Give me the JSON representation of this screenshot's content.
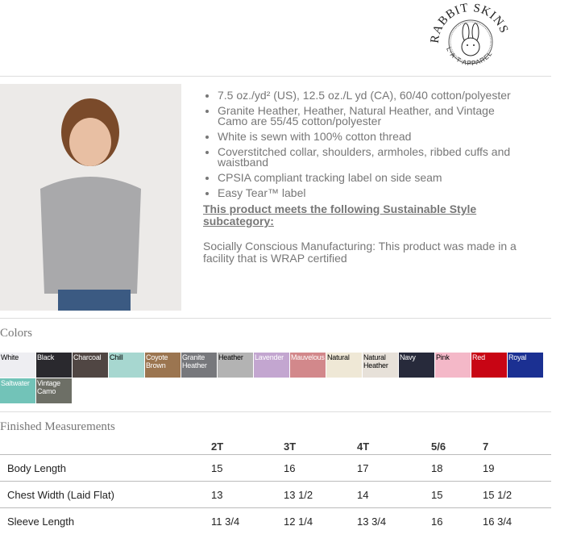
{
  "logo": {
    "text_top": "RABBIT SKINS",
    "text_bottom": "L·A·T APPAREL"
  },
  "features": [
    "7.5 oz./yd² (US), 12.5 oz./L yd (CA), 60/40 cotton/polyester",
    "Granite Heather, Heather, Natural Heather, and Vintage Camo are 55/45 cotton/polyester",
    "White is sewn with 100% cotton thread",
    "Coverstitched collar, shoulders, armholes, ribbed cuffs and waistband",
    "CPSIA compliant tracking label on side seam",
    "Easy Tear™ label"
  ],
  "sustainable_heading": "This product meets the following Sustainable Style subcategory:",
  "sustainable_text": "Socially Conscious Manufacturing: This product was made in a facility that is WRAP certified",
  "colors_title": "Colors",
  "colors": [
    {
      "name": "White",
      "hex": "#eeeef2",
      "dark": true
    },
    {
      "name": "Black",
      "hex": "#2a292e"
    },
    {
      "name": "Charcoal",
      "hex": "#504643"
    },
    {
      "name": "Chill",
      "hex": "#a7d7d0",
      "dark": true
    },
    {
      "name": "Coyote Brown",
      "hex": "#9b7550"
    },
    {
      "name": "Granite Heather",
      "hex": "#77787c"
    },
    {
      "name": "Heather",
      "hex": "#b3b3b3",
      "dark": true
    },
    {
      "name": "Lavender",
      "hex": "#c3a6d0"
    },
    {
      "name": "Mauvelous",
      "hex": "#d2888b"
    },
    {
      "name": "Natural",
      "hex": "#efe8d6",
      "dark": true
    },
    {
      "name": "Natural Heather",
      "hex": "#e7e1d9",
      "dark": true
    },
    {
      "name": "Navy",
      "hex": "#272a3b"
    },
    {
      "name": "Pink",
      "hex": "#f4b8c8",
      "dark": true
    },
    {
      "name": "Red",
      "hex": "#c80514"
    },
    {
      "name": "Royal",
      "hex": "#1b3092"
    },
    {
      "name": "Saltwater",
      "hex": "#72c3b8"
    },
    {
      "name": "Vintage Camo",
      "hex": "#6d6f66"
    }
  ],
  "measurements": {
    "title": "Finished Measurements",
    "sizes": [
      "2T",
      "3T",
      "4T",
      "5/6",
      "7"
    ],
    "rows": [
      {
        "label": "Body Length",
        "values": [
          "15",
          "16",
          "17",
          "18",
          "19"
        ]
      },
      {
        "label": "Chest Width (Laid Flat)",
        "values": [
          "13",
          "13 1/2",
          "14",
          "15",
          "15 1/2"
        ]
      },
      {
        "label": "Sleeve Length",
        "values": [
          "11 3/4",
          "12 1/4",
          "13 3/4",
          "16",
          "16 3/4"
        ]
      }
    ]
  }
}
